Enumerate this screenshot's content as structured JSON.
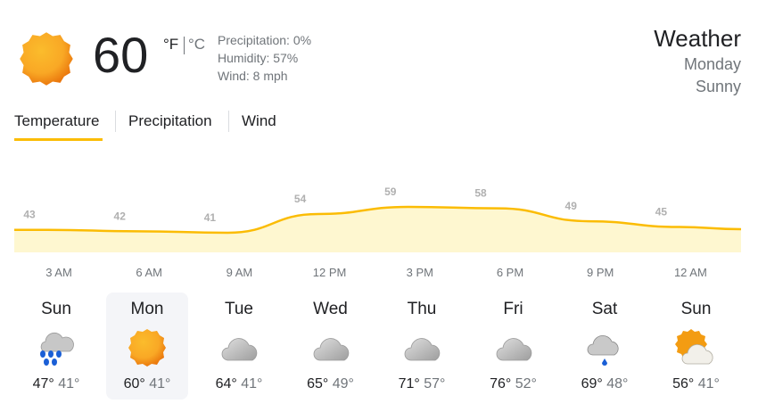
{
  "current": {
    "icon": "sunny-icon",
    "temperature": "60",
    "unit_f": "°F",
    "unit_c": "°C",
    "precipitation": "Precipitation: 0%",
    "humidity": "Humidity: 57%",
    "wind": "Wind: 8 mph"
  },
  "header": {
    "title": "Weather",
    "day": "Monday",
    "condition": "Sunny"
  },
  "tabs": [
    {
      "label": "Temperature",
      "active": true
    },
    {
      "label": "Precipitation"
    },
    {
      "label": "Wind"
    }
  ],
  "colors": {
    "accent": "#fbbc04",
    "fill": "#fef7d0"
  },
  "chart_data": {
    "type": "area",
    "x": [
      "3 AM",
      "6 AM",
      "9 AM",
      "12 PM",
      "3 PM",
      "6 PM",
      "9 PM",
      "12 AM"
    ],
    "values": [
      43,
      42,
      41,
      54,
      59,
      58,
      49,
      45
    ],
    "data_labels": [
      "43",
      "42",
      "41",
      "54",
      "59",
      "58",
      "49",
      "45"
    ]
  },
  "days": [
    {
      "name": "Sun",
      "icon": "rain-icon",
      "high": "47°",
      "low": "41°"
    },
    {
      "name": "Mon",
      "icon": "sunny-icon",
      "high": "60°",
      "low": "41°",
      "selected": true
    },
    {
      "name": "Tue",
      "icon": "cloudy-icon",
      "high": "64°",
      "low": "41°"
    },
    {
      "name": "Wed",
      "icon": "cloudy-icon",
      "high": "65°",
      "low": "49°"
    },
    {
      "name": "Thu",
      "icon": "cloudy-icon",
      "high": "71°",
      "low": "57°"
    },
    {
      "name": "Fri",
      "icon": "cloudy-icon",
      "high": "76°",
      "low": "52°"
    },
    {
      "name": "Sat",
      "icon": "light-rain-icon",
      "high": "69°",
      "low": "48°"
    },
    {
      "name": "Sun",
      "icon": "partly-cloudy-icon",
      "high": "56°",
      "low": "41°"
    }
  ]
}
